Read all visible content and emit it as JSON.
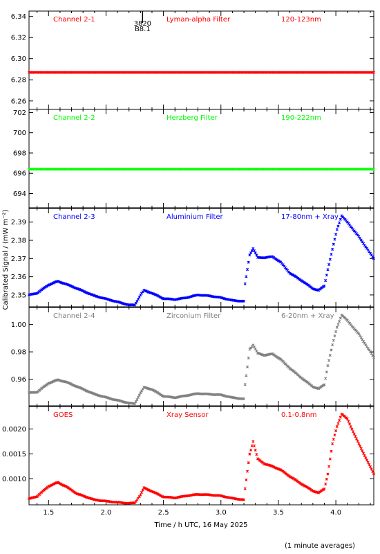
{
  "chart_data": {
    "type": "scatter",
    "x_label": "Time / h UTC, 16 May 2025",
    "y_label": "Calibrated Signal / (mW m⁻²)",
    "footnote": "(1 minute averages)",
    "x_range": [
      1.33,
      4.33
    ],
    "x_ticks": [
      "1.5",
      "2.0",
      "2.5",
      "3.0",
      "3.5",
      "4.0"
    ],
    "x_tick_values": [
      1.5,
      2.0,
      2.5,
      3.0,
      3.5,
      4.0
    ],
    "marker_annotation": {
      "x": 2.33,
      "text_top": "3820",
      "text_bottom": "B8.1"
    },
    "panels": [
      {
        "id": "ch21",
        "channel": "Channel 2-1",
        "filter": "Lyman-alpha Filter",
        "band": "120-123nm",
        "color": "#ff0000",
        "ylim": [
          6.252,
          6.345
        ],
        "y_ticks": [
          6.26,
          6.28,
          6.3,
          6.32,
          6.34
        ],
        "y_tick_labels": [
          "6.26",
          "6.28",
          "6.30",
          "6.32",
          "6.34"
        ],
        "x": [
          1.33,
          4.33
        ],
        "y": [
          6.287,
          6.287
        ]
      },
      {
        "id": "ch22",
        "channel": "Channel 2-2",
        "filter": "Herzberg Filter",
        "band": "190-222nm",
        "color": "#00ff00",
        "ylim": [
          692.6,
          702.3
        ],
        "y_ticks": [
          694,
          696,
          698,
          700,
          702
        ],
        "y_tick_labels": [
          "694",
          "696",
          "698",
          "700",
          "702"
        ],
        "x": [
          1.33,
          4.33
        ],
        "y": [
          696.4,
          696.4
        ]
      },
      {
        "id": "ch23",
        "channel": "Channel 2-3",
        "filter": "Aluminium Filter",
        "band": "17-80nm + Xray",
        "color": "#0000ff",
        "ylim": [
          2.3435,
          2.3975
        ],
        "y_ticks": [
          2.35,
          2.36,
          2.37,
          2.38,
          2.39
        ],
        "y_tick_labels": [
          "2.35",
          "2.36",
          "2.37",
          "2.38",
          "2.39"
        ],
        "x": [
          1.33,
          1.4,
          1.5,
          1.58,
          1.65,
          1.75,
          1.9,
          2.05,
          2.2,
          2.25,
          2.3,
          2.33,
          2.4,
          2.5,
          2.6,
          2.7,
          2.8,
          2.9,
          3.0,
          3.1,
          3.2,
          3.21,
          3.25,
          3.28,
          3.32,
          3.38,
          3.45,
          3.52,
          3.6,
          3.7,
          3.8,
          3.85,
          3.9,
          3.93,
          3.97,
          4.01,
          4.05,
          4.1,
          4.2,
          4.33
        ],
        "y": [
          2.35,
          2.351,
          2.3555,
          2.3575,
          2.356,
          2.3535,
          2.3495,
          2.347,
          2.3445,
          2.3445,
          2.35,
          2.3525,
          2.351,
          2.348,
          2.3475,
          2.3485,
          2.35,
          2.3495,
          2.3485,
          2.347,
          2.3465,
          2.356,
          2.372,
          2.3755,
          2.3705,
          2.3705,
          2.371,
          2.368,
          2.362,
          2.358,
          2.3535,
          2.3525,
          2.355,
          2.364,
          2.375,
          2.386,
          2.3935,
          2.39,
          2.382,
          2.37
        ]
      },
      {
        "id": "ch24",
        "channel": "Channel 2-4",
        "filter": "Zirconium Filter",
        "band": "6-20nm + Xray",
        "color": "#808080",
        "ylim": [
          0.9405,
          1.0125
        ],
        "y_ticks": [
          0.96,
          0.98,
          1.0
        ],
        "y_tick_labels": [
          "0.96",
          "0.98",
          "1.00"
        ],
        "x": [
          1.33,
          1.4,
          1.5,
          1.58,
          1.65,
          1.75,
          1.9,
          2.05,
          2.2,
          2.25,
          2.3,
          2.33,
          2.4,
          2.5,
          2.6,
          2.7,
          2.8,
          2.9,
          3.0,
          3.1,
          3.2,
          3.21,
          3.25,
          3.28,
          3.32,
          3.38,
          3.45,
          3.52,
          3.6,
          3.7,
          3.8,
          3.85,
          3.9,
          3.93,
          3.97,
          4.01,
          4.05,
          4.1,
          4.2,
          4.33
        ],
        "y": [
          0.95,
          0.9505,
          0.957,
          0.9595,
          0.958,
          0.9545,
          0.949,
          0.9455,
          0.9425,
          0.942,
          0.95,
          0.954,
          0.9525,
          0.9475,
          0.9465,
          0.948,
          0.9495,
          0.949,
          0.9485,
          0.9465,
          0.9455,
          0.956,
          0.982,
          0.985,
          0.979,
          0.9775,
          0.9785,
          0.9745,
          0.968,
          0.961,
          0.9545,
          0.953,
          0.956,
          0.97,
          0.985,
          0.998,
          1.007,
          1.003,
          0.993,
          0.976
        ]
      },
      {
        "id": "goes",
        "channel": "GOES",
        "filter": "Xray Sensor",
        "band": "0.1-0.8nm",
        "color": "#ff0000",
        "ylim": [
          0.00048,
          0.00245
        ],
        "y_ticks": [
          0.001,
          0.0015,
          0.002
        ],
        "y_tick_labels": [
          "0.0010",
          "0.0015",
          "0.0020"
        ],
        "x": [
          1.33,
          1.4,
          1.5,
          1.58,
          1.65,
          1.75,
          1.9,
          2.05,
          2.2,
          2.25,
          2.3,
          2.33,
          2.4,
          2.5,
          2.6,
          2.7,
          2.8,
          2.9,
          3.0,
          3.1,
          3.2,
          3.21,
          3.25,
          3.28,
          3.32,
          3.38,
          3.45,
          3.52,
          3.6,
          3.7,
          3.8,
          3.85,
          3.9,
          3.93,
          3.97,
          4.01,
          4.05,
          4.1,
          4.2,
          4.33
        ],
        "y": [
          0.0006,
          0.00065,
          0.00085,
          0.00093,
          0.00085,
          0.0007,
          0.00058,
          0.00054,
          0.00051,
          0.00052,
          0.00068,
          0.00082,
          0.00075,
          0.00064,
          0.00062,
          0.00066,
          0.00069,
          0.00068,
          0.00066,
          0.00061,
          0.00058,
          0.0008,
          0.0015,
          0.00175,
          0.0014,
          0.0013,
          0.00125,
          0.00118,
          0.00105,
          0.0009,
          0.00076,
          0.00072,
          0.0008,
          0.0011,
          0.0017,
          0.00205,
          0.0023,
          0.0022,
          0.0017,
          0.0011
        ]
      }
    ]
  }
}
